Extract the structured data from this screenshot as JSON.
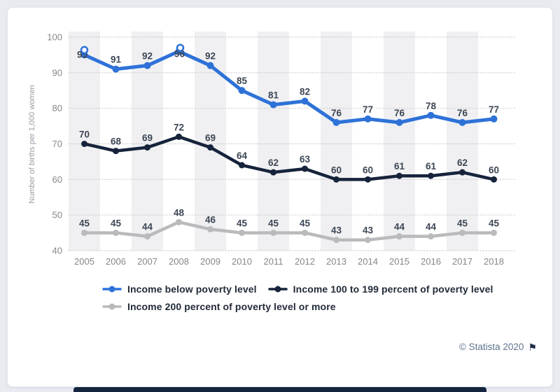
{
  "chart_data": {
    "type": "line",
    "title": "",
    "ylabel": "Number of births per 1,000 women",
    "xlabel": "",
    "x": [
      2005,
      2006,
      2007,
      2008,
      2009,
      2010,
      2011,
      2012,
      2013,
      2014,
      2015,
      2016,
      2017,
      2018
    ],
    "ylim": [
      40,
      100
    ],
    "yticks": [
      40,
      50,
      60,
      70,
      80,
      90,
      100
    ],
    "grid": "dotted-horizontal",
    "background_bands": "alternating vertical year stripes",
    "legend_position": "bottom-left",
    "series": [
      {
        "name": "Income below poverty level",
        "color": "#2e72d8",
        "values": [
          95,
          91,
          92,
          96,
          92,
          85,
          81,
          82,
          76,
          77,
          76,
          78,
          76,
          77
        ],
        "label_overrides": {
          "0": [
            -3,
            4
          ],
          "3": [
            1,
            8
          ]
        },
        "ring_markers": [
          [
            0,
            0,
            -7
          ],
          [
            3,
            2,
            -5
          ]
        ]
      },
      {
        "name": "Income 100 to 199 percent of poverty level",
        "color": "#16233b",
        "values": [
          70,
          68,
          69,
          72,
          69,
          64,
          62,
          63,
          60,
          60,
          61,
          61,
          62,
          60
        ]
      },
      {
        "name": "Income 200 percent of poverty level or more",
        "color": "#b9babc",
        "values": [
          45,
          45,
          44,
          48,
          46,
          45,
          45,
          45,
          43,
          43,
          44,
          44,
          45,
          45
        ]
      }
    ]
  },
  "footer": {
    "copyright": "© Statista 2020",
    "flag_icon": "⚑"
  },
  "colors": {
    "page_bg": "#e9ebf1",
    "card_bg": "#ffffff",
    "stripe": "#f0f0f2",
    "gridline": "#c9c9cc",
    "tick_text": "#85878a",
    "value_label": "#3c4654",
    "axis_title": "#969ca4",
    "legend_text": "#222b38",
    "copyright_text": "#5e738f",
    "bottom_bar": "#15253f"
  }
}
